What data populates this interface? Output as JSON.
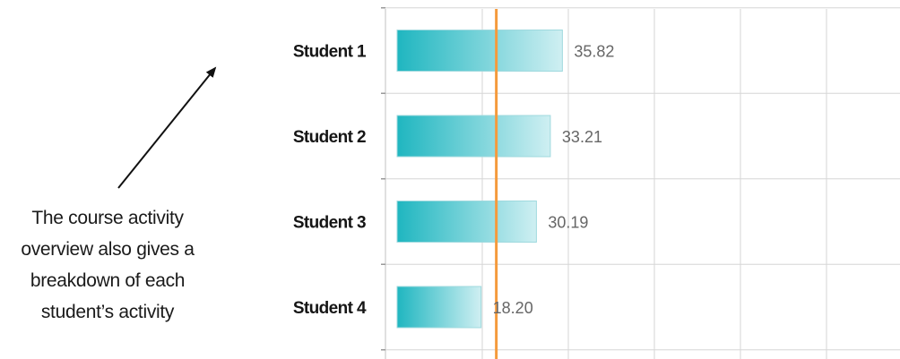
{
  "annotation": {
    "lines": [
      "The course activity",
      "overview also gives a",
      "breakdown of each",
      "student’s activity"
    ]
  },
  "colors": {
    "bar_start": "#1fb6c0",
    "bar_end": "#cfeff2",
    "bar_stroke": "#9fd9de",
    "reference_line": "#f59a3c",
    "grid": "#d6d6d6",
    "arrow": "#111111"
  },
  "chart_data": {
    "type": "bar",
    "orientation": "horizontal",
    "categories": [
      "Student 1",
      "Student 2",
      "Student 3",
      "Student 4"
    ],
    "values": [
      35.82,
      33.21,
      30.19,
      18.2
    ],
    "value_labels": [
      "35.82",
      "33.21",
      "30.19",
      "18.20"
    ],
    "reference_line": 21.5,
    "xlim": [
      0,
      109
    ],
    "grid": true,
    "title": "",
    "xlabel": "",
    "ylabel": ""
  }
}
